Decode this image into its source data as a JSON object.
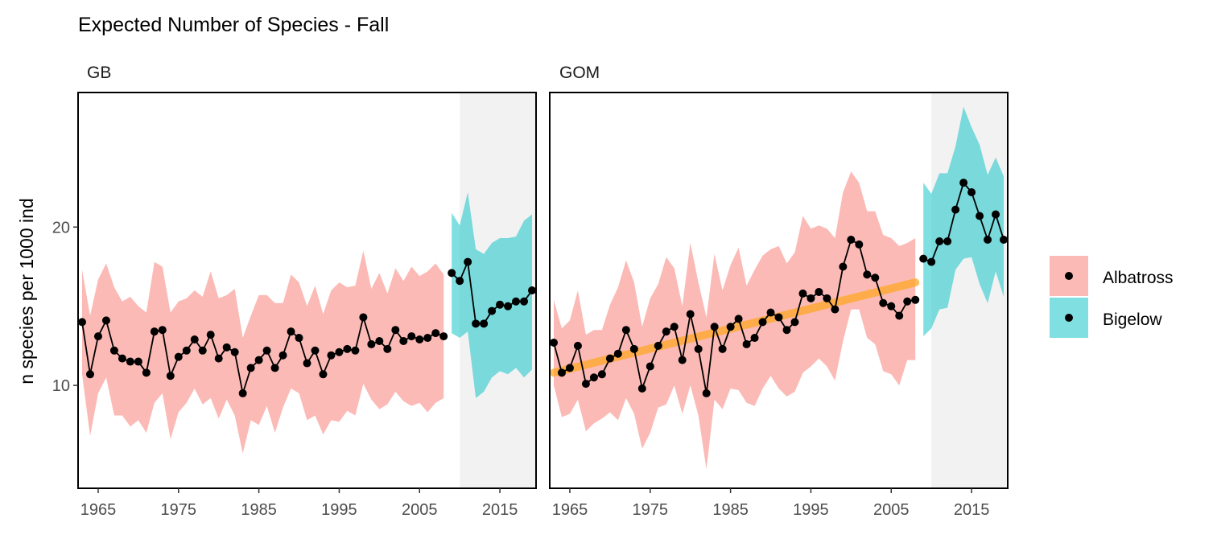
{
  "chart_data": {
    "type": "line",
    "title": "Expected Number of Species - Fall",
    "xlabel": "",
    "ylabel": "n species per 1000 ind",
    "xlim": [
      1962.5,
      2019.5
    ],
    "ylim": [
      3.5,
      28.5
    ],
    "x_ticks": [
      1965,
      1975,
      1985,
      1995,
      2005,
      2015
    ],
    "y_ticks": [
      10,
      20
    ],
    "shaded_period": [
      2010,
      2019.5
    ],
    "legend": {
      "position": "right",
      "entries": [
        {
          "name": "Albatross",
          "color": "#F8766D"
        },
        {
          "name": "Bigelow",
          "color": "#00BFC4"
        }
      ]
    },
    "trend_color": "#FFA726",
    "panels": [
      {
        "name": "GB",
        "trend": null,
        "series": [
          {
            "name": "Albatross",
            "x": [
              1963,
              1964,
              1965,
              1966,
              1967,
              1968,
              1969,
              1970,
              1971,
              1972,
              1973,
              1974,
              1975,
              1976,
              1977,
              1978,
              1979,
              1980,
              1981,
              1982,
              1983,
              1984,
              1985,
              1986,
              1987,
              1988,
              1989,
              1990,
              1991,
              1992,
              1993,
              1994,
              1995,
              1996,
              1997,
              1998,
              1999,
              2000,
              2001,
              2002,
              2003,
              2004,
              2005,
              2006,
              2007,
              2008
            ],
            "y": [
              14.0,
              10.7,
              13.1,
              14.1,
              12.2,
              11.7,
              11.5,
              11.5,
              10.8,
              13.4,
              13.5,
              10.6,
              11.8,
              12.2,
              12.9,
              12.2,
              13.2,
              11.7,
              12.4,
              12.1,
              9.5,
              11.1,
              11.6,
              12.2,
              11.1,
              11.9,
              13.4,
              13.0,
              11.4,
              12.2,
              10.7,
              11.9,
              12.1,
              12.3,
              12.2,
              14.3,
              12.6,
              12.8,
              12.3,
              13.5,
              12.8,
              13.1,
              12.9,
              13.0,
              13.3,
              13.1
            ],
            "upper": [
              17.3,
              14.4,
              16.7,
              17.7,
              16.2,
              15.3,
              15.6,
              15.0,
              14.6,
              17.8,
              17.5,
              14.6,
              15.3,
              15.5,
              16.0,
              15.6,
              17.2,
              15.5,
              15.7,
              16.1,
              13.0,
              14.4,
              15.7,
              15.7,
              15.2,
              15.2,
              17.0,
              16.5,
              15.0,
              16.3,
              14.5,
              16.0,
              16.5,
              16.2,
              16.3,
              18.5,
              16.1,
              17.1,
              15.8,
              17.4,
              16.6,
              17.5,
              16.9,
              17.2,
              17.7,
              17.0
            ],
            "lower": [
              10.7,
              6.8,
              9.5,
              10.5,
              8.1,
              8.1,
              7.4,
              7.8,
              7.0,
              8.9,
              9.5,
              6.6,
              8.3,
              8.9,
              9.8,
              8.8,
              9.2,
              7.9,
              9.1,
              8.1,
              5.7,
              7.8,
              7.5,
              8.7,
              7.0,
              8.6,
              9.8,
              9.5,
              7.8,
              8.1,
              6.9,
              7.8,
              7.7,
              8.4,
              8.1,
              10.1,
              9.1,
              8.5,
              8.8,
              9.6,
              9.0,
              8.7,
              8.9,
              8.3,
              8.9,
              9.2
            ]
          },
          {
            "name": "Bigelow",
            "x": [
              2009,
              2010,
              2011,
              2012,
              2013,
              2014,
              2015,
              2016,
              2017,
              2018,
              2019
            ],
            "y": [
              17.1,
              16.6,
              17.8,
              13.9,
              13.9,
              14.7,
              15.1,
              15.0,
              15.3,
              15.3,
              16.0
            ],
            "upper": [
              20.9,
              20.1,
              22.2,
              18.6,
              18.3,
              19.0,
              19.3,
              19.3,
              19.4,
              20.4,
              20.8
            ],
            "lower": [
              13.3,
              13.0,
              13.4,
              9.2,
              9.6,
              10.5,
              10.9,
              10.7,
              11.1,
              10.5,
              11.0
            ]
          }
        ]
      },
      {
        "name": "GOM",
        "trend": {
          "x": [
            1963,
            2008
          ],
          "y": [
            10.8,
            16.5
          ]
        },
        "series": [
          {
            "name": "Albatross",
            "x": [
              1963,
              1964,
              1965,
              1966,
              1967,
              1968,
              1969,
              1970,
              1971,
              1972,
              1973,
              1974,
              1975,
              1976,
              1977,
              1978,
              1979,
              1980,
              1981,
              1982,
              1983,
              1984,
              1985,
              1986,
              1987,
              1988,
              1989,
              1990,
              1991,
              1992,
              1993,
              1994,
              1995,
              1996,
              1997,
              1998,
              1999,
              2000,
              2001,
              2002,
              2003,
              2004,
              2005,
              2006,
              2007,
              2008
            ],
            "y": [
              12.7,
              10.8,
              11.1,
              12.5,
              10.1,
              10.5,
              10.7,
              11.7,
              12.0,
              13.5,
              12.3,
              9.8,
              11.2,
              12.5,
              13.4,
              13.7,
              11.6,
              14.5,
              12.3,
              9.5,
              13.7,
              12.3,
              13.7,
              14.2,
              12.6,
              13.0,
              14.0,
              14.6,
              14.3,
              13.5,
              14.0,
              15.8,
              15.5,
              15.9,
              15.5,
              14.8,
              17.5,
              19.2,
              18.9,
              17.0,
              16.8,
              15.2,
              15.0,
              14.4,
              15.3,
              15.4
            ],
            "upper": [
              15.4,
              13.6,
              14.1,
              16.0,
              13.2,
              13.5,
              13.5,
              15.1,
              16.2,
              17.9,
              16.5,
              13.7,
              15.5,
              16.4,
              18.1,
              17.4,
              15.0,
              19.0,
              16.5,
              14.3,
              18.3,
              16.0,
              17.6,
              18.7,
              16.3,
              17.3,
              18.2,
              18.6,
              18.8,
              17.7,
              18.4,
              20.7,
              19.9,
              20.1,
              19.9,
              19.3,
              22.2,
              23.5,
              22.8,
              21.0,
              21.0,
              19.5,
              19.3,
              18.8,
              19.0,
              19.3
            ],
            "lower": [
              10.0,
              8.0,
              8.2,
              9.1,
              7.1,
              7.6,
              7.9,
              8.3,
              7.8,
              9.2,
              8.2,
              6.0,
              7.0,
              8.6,
              8.8,
              10.0,
              8.2,
              10.0,
              8.1,
              4.7,
              9.1,
              8.5,
              9.8,
              9.7,
              8.9,
              8.7,
              9.8,
              10.6,
              9.8,
              9.3,
              9.6,
              10.8,
              11.2,
              11.7,
              11.2,
              10.3,
              12.8,
              14.8,
              14.8,
              13.0,
              12.6,
              10.9,
              10.7,
              10.0,
              11.6,
              11.6
            ]
          },
          {
            "name": "Bigelow",
            "x": [
              2009,
              2010,
              2011,
              2012,
              2013,
              2014,
              2015,
              2016,
              2017,
              2018,
              2019
            ],
            "y": [
              18.0,
              17.8,
              19.1,
              19.1,
              21.1,
              22.8,
              22.2,
              20.7,
              19.2,
              20.8,
              19.2
            ],
            "upper": [
              22.8,
              22.1,
              23.4,
              23.4,
              25.1,
              27.6,
              26.3,
              25.2,
              23.3,
              24.4,
              23.2
            ],
            "lower": [
              13.1,
              13.6,
              14.8,
              14.9,
              17.3,
              18.0,
              18.1,
              16.4,
              15.2,
              17.2,
              15.6
            ]
          }
        ]
      }
    ]
  }
}
